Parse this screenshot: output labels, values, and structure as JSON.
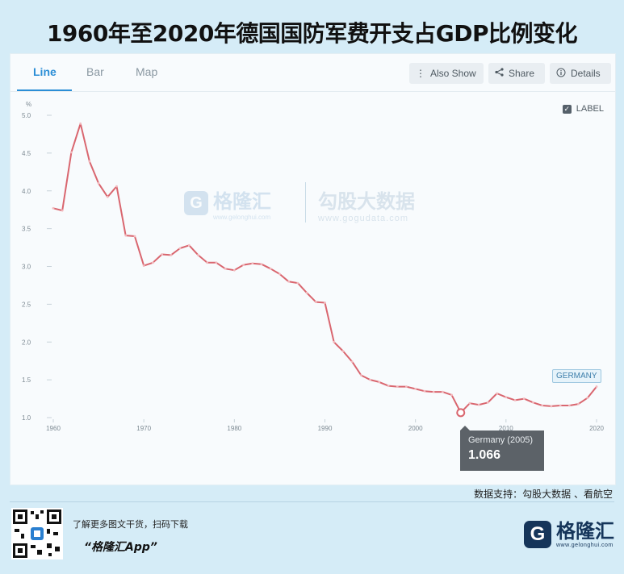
{
  "title": "1960年至2020年德国国防军费开支占GDP比例变化",
  "tabs": [
    {
      "label": "Line",
      "active": true
    },
    {
      "label": "Bar",
      "active": false
    },
    {
      "label": "Map",
      "active": false
    }
  ],
  "toolbar": {
    "also_show": "Also Show",
    "share": "Share",
    "details": "Details"
  },
  "label_toggle": "LABEL",
  "tooltip": {
    "title": "Germany (2005)",
    "value": "1.066"
  },
  "watermarks": {
    "brand_name": "格隆汇",
    "brand_url": "www.gelonghui.com",
    "data_name": "勾股大数据",
    "data_url": "www.gogudata.com"
  },
  "source_text": "数据支持：勾股大数据 、看航空",
  "footer": {
    "line1": "了解更多图文干货，扫码下载",
    "line2": "“格隆汇App”",
    "brand_name": "格隆汇",
    "brand_url": "www.gelonghui.com"
  },
  "colors": {
    "line": "#d9666f",
    "accent": "#2b8ed6",
    "brand": "#15355a"
  },
  "chart_data": {
    "type": "line",
    "ylabel": "%",
    "ylim": [
      1.0,
      5.0
    ],
    "yticks": [
      "1.0",
      "1.5",
      "2.0",
      "2.5",
      "3.0",
      "3.5",
      "4.0",
      "4.5",
      "5.0"
    ],
    "xlim": [
      1960,
      2020
    ],
    "xticks": [
      "1960",
      "1970",
      "1980",
      "1990",
      "2000",
      "2010",
      "2020"
    ],
    "grid": false,
    "series": [
      {
        "name": "GERMANY",
        "x": [
          1960,
          1961,
          1962,
          1963,
          1964,
          1965,
          1966,
          1967,
          1968,
          1969,
          1970,
          1971,
          1972,
          1973,
          1974,
          1975,
          1976,
          1977,
          1978,
          1979,
          1980,
          1981,
          1982,
          1983,
          1984,
          1985,
          1986,
          1987,
          1988,
          1989,
          1990,
          1991,
          1992,
          1993,
          1994,
          1995,
          1996,
          1997,
          1998,
          1999,
          2000,
          2001,
          2002,
          2003,
          2004,
          2005,
          2006,
          2007,
          2008,
          2009,
          2010,
          2011,
          2012,
          2013,
          2014,
          2015,
          2016,
          2017,
          2018,
          2019,
          2020
        ],
        "y": [
          3.77,
          3.74,
          4.51,
          4.89,
          4.39,
          4.1,
          3.92,
          4.06,
          3.41,
          3.4,
          3.01,
          3.05,
          3.16,
          3.15,
          3.24,
          3.28,
          3.15,
          3.05,
          3.05,
          2.97,
          2.95,
          3.02,
          3.04,
          3.03,
          2.97,
          2.9,
          2.8,
          2.78,
          2.65,
          2.53,
          2.52,
          2.0,
          1.88,
          1.74,
          1.56,
          1.5,
          1.47,
          1.42,
          1.41,
          1.41,
          1.38,
          1.35,
          1.34,
          1.34,
          1.3,
          1.066,
          1.19,
          1.17,
          1.2,
          1.32,
          1.27,
          1.23,
          1.25,
          1.2,
          1.16,
          1.15,
          1.16,
          1.16,
          1.18,
          1.26,
          1.41
        ]
      }
    ],
    "highlight": {
      "x": 2005,
      "y": 1.066
    },
    "series_label": "GERMANY"
  }
}
